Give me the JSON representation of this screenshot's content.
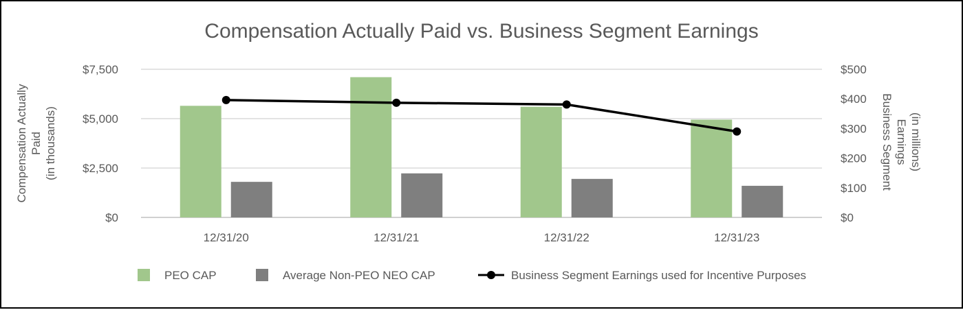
{
  "chart_data": {
    "type": "bar",
    "title": "Compensation Actually Paid vs. Business Segment Earnings",
    "categories": [
      "12/31/20",
      "12/31/21",
      "12/31/22",
      "12/31/23"
    ],
    "y_left": {
      "label_lines": [
        "Compensation Actually",
        "Paid",
        "(in thousands)"
      ],
      "ticks": [
        "$0",
        "$2,500",
        "$5,000",
        "$7,500"
      ],
      "tick_values": [
        0,
        2500,
        5000,
        7500
      ],
      "range": [
        0,
        7500
      ]
    },
    "y_right": {
      "label_lines": [
        "Business Segment",
        "Earnings",
        "(in millions)"
      ],
      "ticks": [
        "$0",
        "$100",
        "$200",
        "$300",
        "$400",
        "$500"
      ],
      "tick_values": [
        0,
        100,
        200,
        300,
        400,
        500
      ],
      "range": [
        0,
        500
      ]
    },
    "series": [
      {
        "name": "PEO CAP",
        "kind": "bar",
        "axis": "left",
        "color": "#a1c78c",
        "values": [
          5650,
          7100,
          5600,
          4950
        ]
      },
      {
        "name": "Average Non-PEO NEO CAP",
        "kind": "bar",
        "axis": "left",
        "color": "#7f7f7f",
        "values": [
          1800,
          2230,
          1950,
          1600
        ]
      },
      {
        "name": "Business Segment Earnings used for Incentive Purposes",
        "kind": "line",
        "axis": "right",
        "color": "#000000",
        "values": [
          396,
          387,
          381,
          290
        ]
      }
    ],
    "grid": true,
    "legend_position": "bottom"
  }
}
